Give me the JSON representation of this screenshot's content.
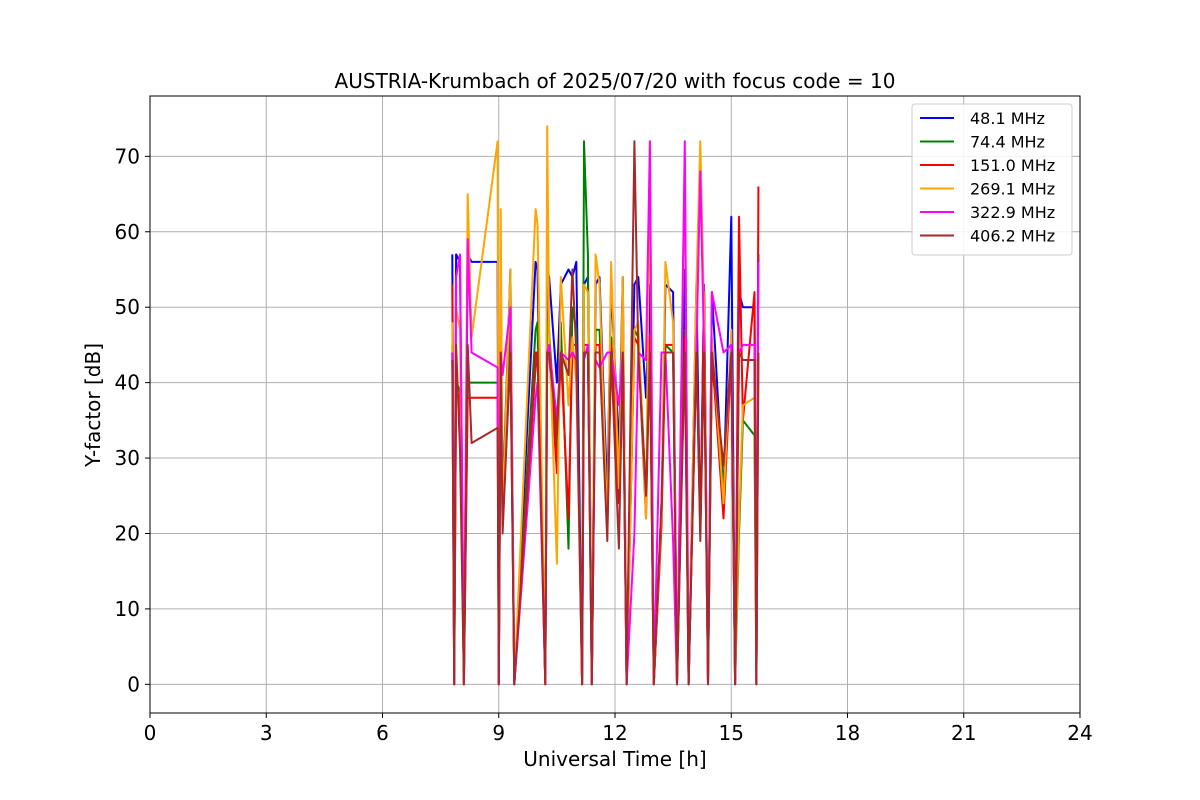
{
  "chart_data": {
    "type": "line",
    "title": "AUSTRIA-Krumbach of 2025/07/20 with focus code = 10",
    "xlabel": "Universal Time [h]",
    "ylabel": "Y-factor [dB]",
    "xlim": [
      0,
      24
    ],
    "ylim": [
      -3.8,
      78
    ],
    "xticks": [
      0,
      3,
      6,
      9,
      12,
      15,
      18,
      21,
      24
    ],
    "yticks": [
      0,
      10,
      20,
      30,
      40,
      50,
      60,
      70
    ],
    "grid": true,
    "legend_position": "top-right",
    "series": [
      {
        "name": " 48.1 MHz",
        "color": "#0000ff",
        "x": [
          7.8,
          7.85,
          7.9,
          8.0,
          8.1,
          8.2,
          8.3,
          8.97,
          9.0,
          9.05,
          9.1,
          9.3,
          9.4,
          9.95,
          10.0,
          10.2,
          10.25,
          10.3,
          10.5,
          10.6,
          10.8,
          10.9,
          11.0,
          11.15,
          11.2,
          11.3,
          11.4,
          11.5,
          11.6,
          11.8,
          11.9,
          12.1,
          12.2,
          12.3,
          12.5,
          12.6,
          12.8,
          12.9,
          13.0,
          13.2,
          13.3,
          13.5,
          13.6,
          13.8,
          13.9,
          14.1,
          14.2,
          14.3,
          14.4,
          14.5,
          14.8,
          15.0,
          15.1,
          15.2,
          15.3,
          15.6,
          15.65,
          15.7
        ],
        "y": [
          57,
          0,
          57,
          56,
          0,
          57,
          56,
          56,
          0,
          55,
          24,
          55,
          0,
          56,
          55,
          0,
          55,
          54,
          40,
          53,
          55,
          54,
          56,
          0,
          53,
          54,
          0,
          53,
          54,
          25,
          53,
          31,
          54,
          0,
          53,
          54,
          38,
          53,
          0,
          22,
          53,
          52,
          0,
          55,
          0,
          53,
          20,
          53,
          0,
          52,
          25,
          62,
          0,
          52,
          50,
          50,
          0,
          57
        ]
      },
      {
        "name": " 74.4 MHz",
        "color": "#008000",
        "x": [
          7.8,
          7.85,
          7.9,
          8.0,
          8.1,
          8.2,
          8.3,
          8.97,
          9.0,
          9.05,
          9.1,
          9.3,
          9.4,
          9.95,
          10.0,
          10.2,
          10.25,
          10.3,
          10.5,
          10.6,
          10.8,
          10.9,
          11.0,
          11.15,
          11.2,
          11.3,
          11.4,
          11.5,
          11.6,
          11.8,
          11.9,
          12.1,
          12.2,
          12.3,
          12.5,
          12.6,
          12.8,
          12.9,
          13.0,
          13.2,
          13.3,
          13.5,
          13.6,
          13.8,
          13.9,
          14.1,
          14.2,
          14.3,
          14.4,
          14.5,
          14.8,
          15.0,
          15.1,
          15.2,
          15.3,
          15.6,
          15.65,
          15.7
        ],
        "y": [
          45,
          0,
          40,
          39,
          0,
          40,
          40,
          40,
          0,
          47,
          23,
          48,
          0,
          47,
          48,
          0,
          48,
          47,
          30,
          48,
          18,
          50,
          47,
          0,
          72,
          57,
          0,
          47,
          47,
          22,
          46,
          27,
          46,
          0,
          47,
          46,
          25,
          45,
          0,
          24,
          45,
          44,
          0,
          47,
          0,
          44,
          22,
          45,
          0,
          43,
          26,
          45,
          0,
          20,
          35,
          33,
          0,
          44
        ]
      },
      {
        "name": "151.0 MHz",
        "color": "#ff0000",
        "x": [
          7.8,
          7.85,
          7.9,
          8.0,
          8.1,
          8.2,
          8.3,
          8.97,
          9.0,
          9.05,
          9.1,
          9.3,
          9.4,
          9.95,
          10.0,
          10.2,
          10.25,
          10.3,
          10.5,
          10.6,
          10.8,
          10.9,
          11.0,
          11.15,
          11.2,
          11.3,
          11.4,
          11.5,
          11.6,
          11.8,
          11.9,
          12.1,
          12.2,
          12.3,
          12.5,
          12.6,
          12.8,
          12.9,
          13.0,
          13.2,
          13.3,
          13.5,
          13.6,
          13.8,
          13.9,
          14.1,
          14.2,
          14.3,
          14.4,
          14.5,
          14.8,
          15.0,
          15.1,
          15.2,
          15.3,
          15.6,
          15.65,
          15.7
        ],
        "y": [
          53,
          0,
          39,
          39,
          0,
          38,
          38,
          38,
          0,
          44,
          21,
          44,
          0,
          44,
          44,
          0,
          44,
          44,
          28,
          44,
          22,
          45,
          45,
          0,
          45,
          45,
          0,
          45,
          45,
          20,
          45,
          24,
          45,
          0,
          46,
          45,
          22,
          46,
          0,
          21,
          45,
          45,
          0,
          46,
          0,
          46,
          20,
          52,
          0,
          44,
          22,
          44,
          0,
          62,
          35,
          52,
          0,
          66
        ]
      },
      {
        "name": "269.1 MHz",
        "color": "#ffa500",
        "x": [
          7.8,
          7.85,
          7.9,
          8.0,
          8.1,
          8.2,
          8.3,
          8.97,
          9.0,
          9.05,
          9.1,
          9.3,
          9.4,
          9.95,
          10.0,
          10.2,
          10.25,
          10.3,
          10.5,
          10.6,
          10.8,
          10.9,
          11.0,
          11.15,
          11.2,
          11.3,
          11.4,
          11.5,
          11.6,
          11.8,
          11.9,
          12.1,
          12.2,
          12.3,
          12.5,
          12.6,
          12.8,
          12.9,
          13.0,
          13.2,
          13.3,
          13.5,
          13.6,
          13.8,
          13.9,
          14.1,
          14.2,
          14.3,
          14.4,
          14.5,
          14.8,
          15.0,
          15.1,
          15.2,
          15.3,
          15.6,
          15.65,
          15.7
        ],
        "y": [
          48,
          0,
          50,
          47,
          0,
          65,
          46,
          72,
          0,
          63,
          22,
          55,
          0,
          63,
          61,
          0,
          74,
          47,
          16,
          54,
          37,
          46,
          40,
          0,
          53,
          52,
          0,
          57,
          53,
          21,
          56,
          26,
          54,
          0,
          47,
          48,
          22,
          71,
          0,
          23,
          56,
          48,
          0,
          70,
          0,
          53,
          72,
          49,
          0,
          46,
          24,
          47,
          0,
          22,
          37,
          38,
          0,
          44
        ]
      },
      {
        "name": "322.9 MHz",
        "color": "#ff00ff",
        "x": [
          7.8,
          7.85,
          7.9,
          8.0,
          8.1,
          8.2,
          8.3,
          8.97,
          9.0,
          9.05,
          9.1,
          9.3,
          9.4,
          9.95,
          10.0,
          10.2,
          10.25,
          10.3,
          10.5,
          10.6,
          10.8,
          10.9,
          11.0,
          11.15,
          11.2,
          11.3,
          11.4,
          11.5,
          11.6,
          11.8,
          11.9,
          12.1,
          12.2,
          12.3,
          12.5,
          12.6,
          12.8,
          12.9,
          13.0,
          13.2,
          13.3,
          13.5,
          13.6,
          13.8,
          13.9,
          14.1,
          14.2,
          14.3,
          14.4,
          14.5,
          14.8,
          15.0,
          15.1,
          15.2,
          15.3,
          15.6,
          15.65,
          15.7
        ],
        "y": [
          44,
          0,
          54,
          57,
          0,
          59,
          44,
          42,
          0,
          44,
          41,
          50,
          0,
          38,
          40,
          0,
          44,
          45,
          35,
          44,
          43,
          44,
          43,
          0,
          43,
          45,
          0,
          43,
          42,
          44,
          44,
          37,
          44,
          0,
          20,
          44,
          43,
          72,
          0,
          44,
          44,
          19,
          0,
          72,
          0,
          44,
          68,
          44,
          0,
          52,
          44,
          45,
          0,
          44,
          45,
          45,
          0,
          56
        ]
      },
      {
        "name": "406.2 MHz",
        "color": "#a52a2a",
        "x": [
          7.8,
          7.85,
          7.9,
          8.0,
          8.1,
          8.2,
          8.3,
          8.97,
          9.0,
          9.05,
          9.1,
          9.3,
          9.4,
          9.95,
          10.0,
          10.2,
          10.25,
          10.3,
          10.5,
          10.6,
          10.8,
          10.9,
          11.0,
          11.15,
          11.2,
          11.3,
          11.4,
          11.5,
          11.6,
          11.8,
          11.9,
          12.1,
          12.2,
          12.3,
          12.5,
          12.6,
          12.8,
          12.9,
          13.0,
          13.2,
          13.3,
          13.5,
          13.6,
          13.8,
          13.9,
          14.1,
          14.2,
          14.3,
          14.4,
          14.5,
          14.8,
          15.0,
          15.1,
          15.2,
          15.3,
          15.6,
          15.65,
          15.7
        ],
        "y": [
          43,
          0,
          45,
          31,
          0,
          45,
          32,
          34,
          0,
          44,
          20,
          44,
          0,
          42,
          44,
          0,
          44,
          44,
          33,
          44,
          41,
          55,
          44,
          0,
          44,
          44,
          0,
          44,
          44,
          19,
          44,
          18,
          44,
          0,
          72,
          44,
          25,
          44,
          0,
          24,
          44,
          44,
          0,
          44,
          0,
          44,
          19,
          44,
          0,
          44,
          29,
          44,
          0,
          44,
          43,
          43,
          0,
          44
        ]
      }
    ]
  }
}
